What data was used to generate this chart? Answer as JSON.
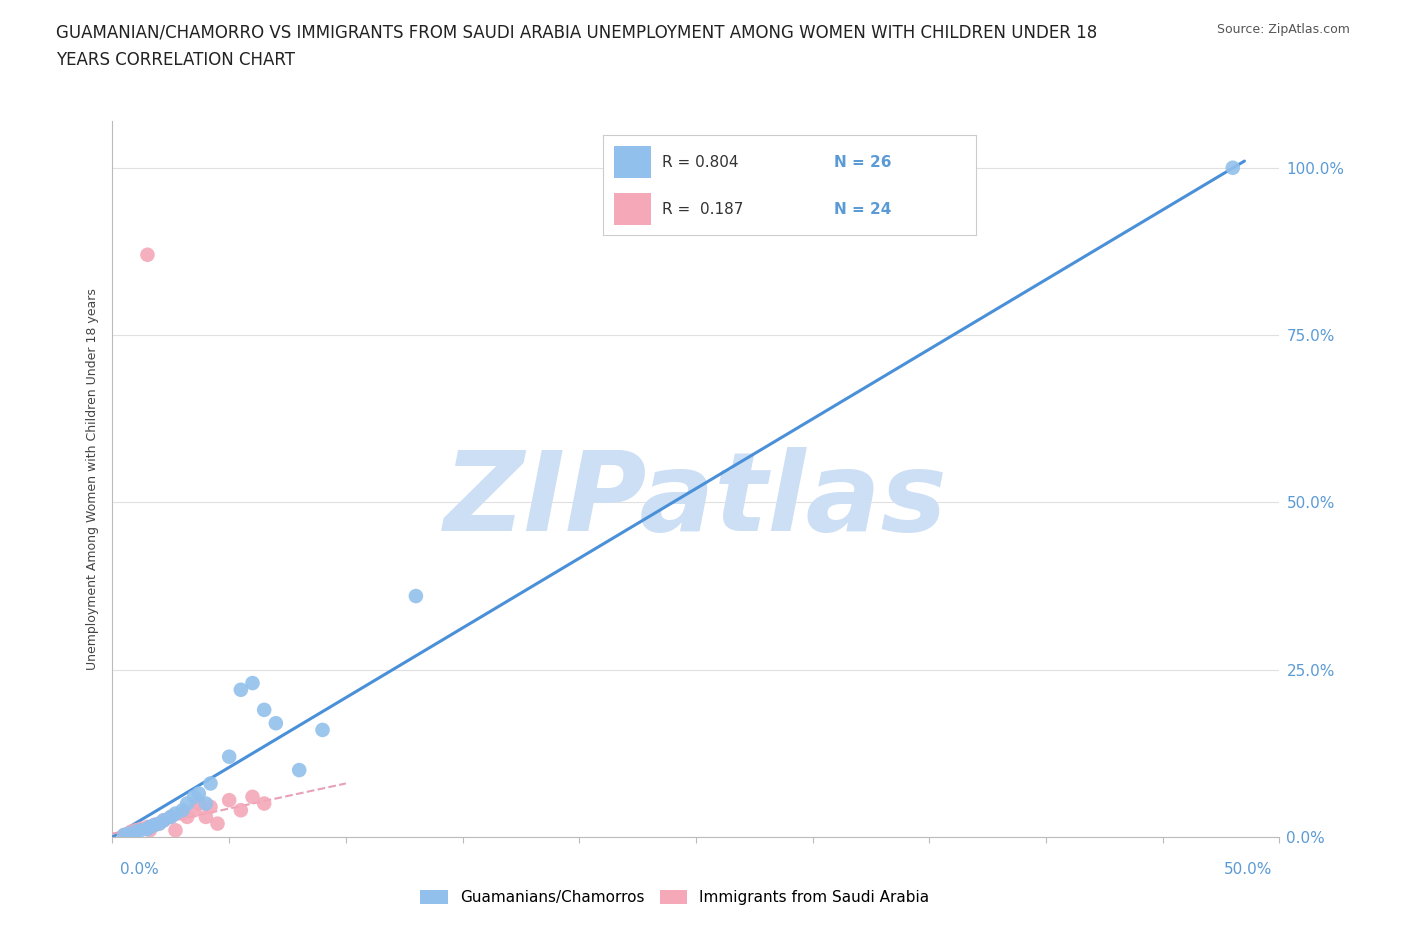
{
  "title_line1": "GUAMANIAN/CHAMORRO VS IMMIGRANTS FROM SAUDI ARABIA UNEMPLOYMENT AMONG WOMEN WITH CHILDREN UNDER 18",
  "title_line2": "YEARS CORRELATION CHART",
  "source": "Source: ZipAtlas.com",
  "ylabel": "Unemployment Among Women with Children Under 18 years",
  "ytick_labels": [
    "0.0%",
    "25.0%",
    "50.0%",
    "75.0%",
    "100.0%"
  ],
  "ytick_values": [
    0,
    0.25,
    0.5,
    0.75,
    1.0
  ],
  "xtick_labels_bottom": [
    "0.0%",
    "50.0%"
  ],
  "xlim": [
    0,
    0.5
  ],
  "ylim": [
    0,
    1.07
  ],
  "blue_r": 0.804,
  "blue_n": 26,
  "pink_r": 0.187,
  "pink_n": 24,
  "blue_color": "#92C0EC",
  "pink_color": "#F4A8B8",
  "blue_line_color": "#4A90D9",
  "pink_line_color": "#E8A0B8",
  "tick_color": "#5B9BD5",
  "watermark": "ZIPatlas",
  "watermark_color": "#CCDFF5",
  "blue_points_x": [
    0.005,
    0.007,
    0.01,
    0.012,
    0.015,
    0.016,
    0.018,
    0.02,
    0.022,
    0.025,
    0.027,
    0.03,
    0.032,
    0.035,
    0.037,
    0.04,
    0.042,
    0.05,
    0.055,
    0.06,
    0.065,
    0.07,
    0.08,
    0.09,
    0.13,
    0.48
  ],
  "blue_points_y": [
    0.003,
    0.005,
    0.008,
    0.01,
    0.012,
    0.015,
    0.018,
    0.02,
    0.025,
    0.03,
    0.035,
    0.04,
    0.05,
    0.06,
    0.065,
    0.05,
    0.08,
    0.12,
    0.22,
    0.23,
    0.19,
    0.17,
    0.1,
    0.16,
    0.36,
    1.0
  ],
  "pink_points_x": [
    0.005,
    0.007,
    0.008,
    0.01,
    0.012,
    0.015,
    0.016,
    0.018,
    0.02,
    0.022,
    0.025,
    0.027,
    0.03,
    0.032,
    0.035,
    0.037,
    0.04,
    0.042,
    0.045,
    0.05,
    0.055,
    0.06,
    0.065,
    0.015
  ],
  "pink_points_y": [
    0.003,
    0.005,
    0.008,
    0.01,
    0.012,
    0.015,
    0.01,
    0.018,
    0.02,
    0.025,
    0.03,
    0.01,
    0.035,
    0.03,
    0.04,
    0.05,
    0.03,
    0.045,
    0.02,
    0.055,
    0.04,
    0.06,
    0.05,
    0.87
  ],
  "blue_line_x0": 0.0,
  "blue_line_y0": 0.0,
  "blue_line_x1": 0.485,
  "blue_line_y1": 1.01,
  "pink_line_x0": 0.0,
  "pink_line_y0": 0.005,
  "pink_line_x1": 0.1,
  "pink_line_y1": 0.08,
  "grid_color": "#E0E0E0",
  "background_color": "#FFFFFF",
  "title_fontsize": 12,
  "source_fontsize": 9,
  "axis_label_fontsize": 9,
  "tick_fontsize": 11,
  "legend_fontsize": 11
}
